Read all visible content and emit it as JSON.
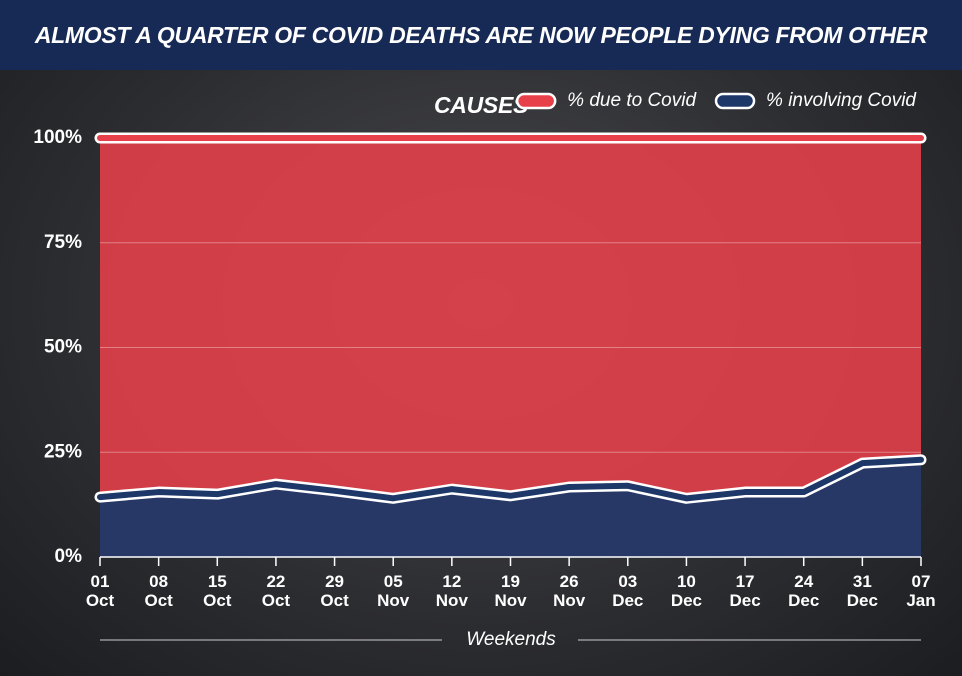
{
  "chart_data": {
    "type": "area",
    "title": "ALMOST A QUARTER OF COVID DEATHS ARE NOW PEOPLE DYING FROM OTHER CAUSES",
    "xlabel": "Weekends",
    "categories": [
      "01 Oct",
      "08 Oct",
      "15 Oct",
      "22 Oct",
      "29 Oct",
      "05 Nov",
      "12 Nov",
      "19 Nov",
      "26 Nov",
      "03 Dec",
      "10 Dec",
      "17 Dec",
      "24 Dec",
      "31 Dec",
      "07 Jan"
    ],
    "series": [
      {
        "name": "% due to Covid",
        "color": "#e8404a",
        "values": [
          100,
          100,
          100,
          100,
          100,
          100,
          100,
          100,
          100,
          100,
          100,
          100,
          100,
          100,
          100
        ]
      },
      {
        "name": "% involving Covid",
        "color": "#1d3768",
        "values": [
          14.3,
          15.5,
          15,
          17.4,
          15.8,
          14,
          16.2,
          14.6,
          16.7,
          17,
          14,
          15.5,
          15.5,
          22.4,
          23.2
        ]
      }
    ],
    "ylim": [
      0,
      100
    ],
    "yticks": [
      {
        "value": 0,
        "label": "0%"
      },
      {
        "value": 25,
        "label": "25%"
      },
      {
        "value": 50,
        "label": "50%"
      },
      {
        "value": 75,
        "label": "75%"
      },
      {
        "value": 100,
        "label": "100%"
      }
    ],
    "grid": true,
    "legend": "top-right"
  }
}
